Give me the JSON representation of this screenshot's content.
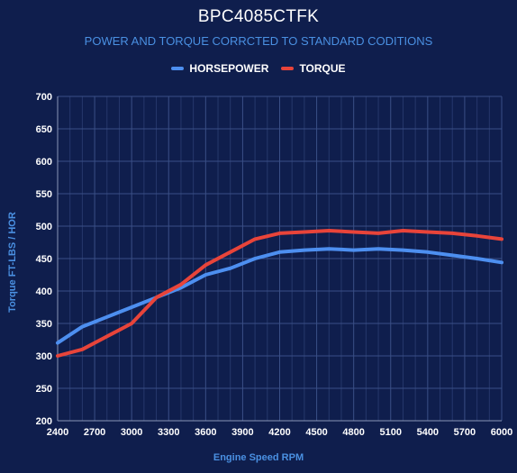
{
  "chart_data": {
    "type": "line",
    "title": "BPC4085CTFK",
    "subtitle": "POWER AND TORQUE CORRCTED TO STANDARD CODITIONS",
    "xlabel": "Engine Speed RPM",
    "ylabel": "Torque FT-LBS / HOR",
    "xlim": [
      2400,
      6000
    ],
    "ylim": [
      200,
      700
    ],
    "x_ticks": [
      "2400",
      "2700",
      "3000",
      "3300",
      "3600",
      "3900",
      "4200",
      "4500",
      "4800",
      "5100",
      "5400",
      "5700",
      "6000"
    ],
    "y_ticks": [
      "200",
      "250",
      "300",
      "350",
      "400",
      "450",
      "500",
      "550",
      "600",
      "650",
      "700"
    ],
    "grid": true,
    "legend_position": "top-center",
    "x": [
      2400,
      2600,
      2800,
      3000,
      3200,
      3400,
      3600,
      3800,
      4000,
      4200,
      4400,
      4600,
      4800,
      5000,
      5200,
      5400,
      5600,
      5800,
      6000
    ],
    "series": [
      {
        "name": "HORSEPOWER",
        "color": "#4d8ff0",
        "values": [
          320,
          345,
          360,
          375,
          390,
          405,
          425,
          435,
          450,
          460,
          463,
          465,
          463,
          465,
          463,
          460,
          455,
          450,
          444
        ]
      },
      {
        "name": "TORQUE",
        "color": "#e8443a",
        "values": [
          300,
          310,
          330,
          350,
          390,
          410,
          440,
          460,
          480,
          489,
          491,
          493,
          491,
          489,
          493,
          491,
          489,
          485,
          480
        ]
      }
    ]
  }
}
